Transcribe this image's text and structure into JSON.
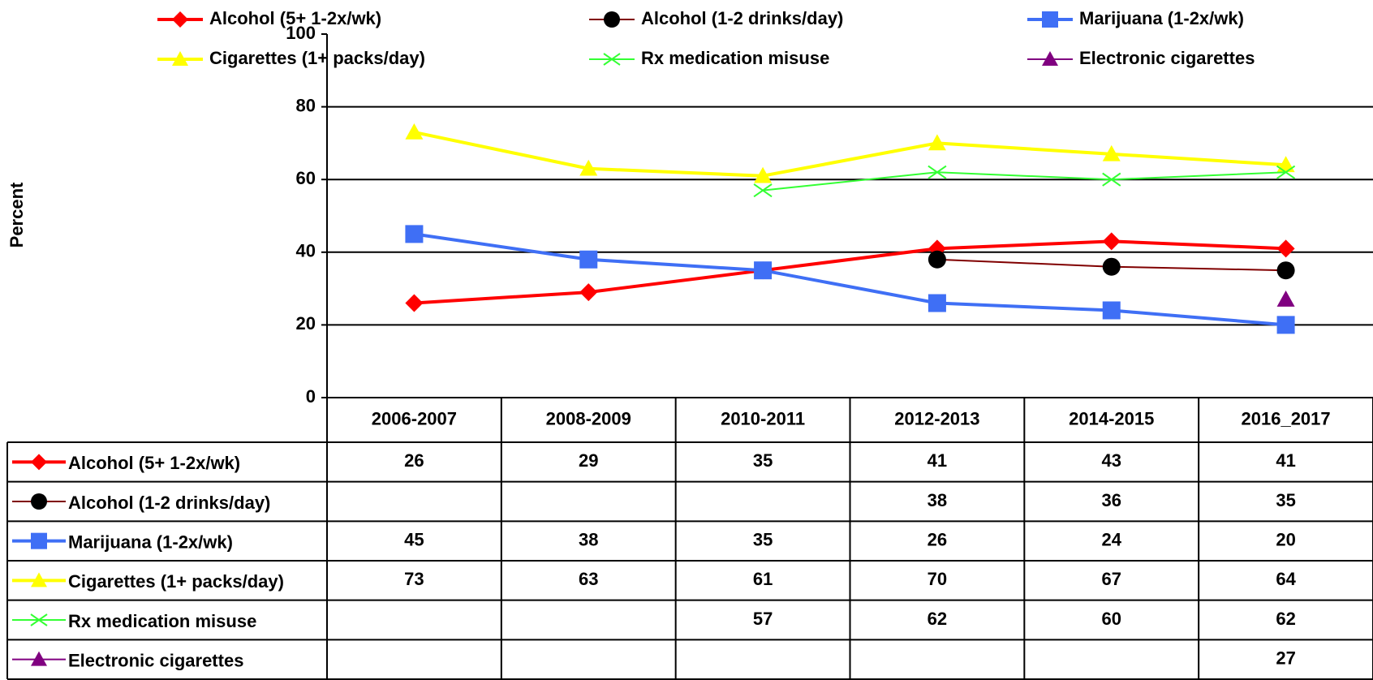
{
  "chart_data": {
    "type": "line",
    "y_label": "Percent",
    "categories": [
      "2006-2007",
      "2008-2009",
      "2010-2011",
      "2012-2013",
      "2014-2015",
      "2016_2017"
    ],
    "ylim": [
      0,
      100
    ],
    "yticks": [
      0,
      20,
      40,
      60,
      80,
      100
    ],
    "grid": true,
    "legend": "top",
    "data_table": true,
    "series": [
      {
        "name": "Alcohol (5+ 1-2x/wk)",
        "color": "#ff0000",
        "marker": "diamond",
        "marker_color": "#ff0000",
        "line_width": 4,
        "values": [
          26,
          29,
          35,
          41,
          43,
          41
        ]
      },
      {
        "name": "Alcohol (1-2 drinks/day)",
        "color": "#800000",
        "marker": "circle",
        "marker_color": "#000000",
        "line_width": 2,
        "values": [
          null,
          null,
          null,
          38,
          36,
          35
        ]
      },
      {
        "name": "Marijuana (1-2x/wk)",
        "color": "#3f6ff5",
        "marker": "square",
        "marker_color": "#3f6ff5",
        "line_width": 4,
        "values": [
          45,
          38,
          35,
          26,
          24,
          20
        ]
      },
      {
        "name": "Cigarettes (1+ packs/day)",
        "color": "#ffff00",
        "marker": "triangle",
        "marker_color": "#ffff00",
        "line_width": 4,
        "values": [
          73,
          63,
          61,
          70,
          67,
          64
        ]
      },
      {
        "name": "Rx medication misuse",
        "color": "#33ff33",
        "marker": "x",
        "marker_color": "#33ff33",
        "line_width": 2,
        "values": [
          null,
          null,
          57,
          62,
          60,
          62
        ]
      },
      {
        "name": "Electronic cigarettes",
        "color": "#800080",
        "marker": "triangle",
        "marker_color": "#800080",
        "line_width": 2,
        "values": [
          null,
          null,
          null,
          null,
          null,
          27
        ]
      }
    ]
  }
}
